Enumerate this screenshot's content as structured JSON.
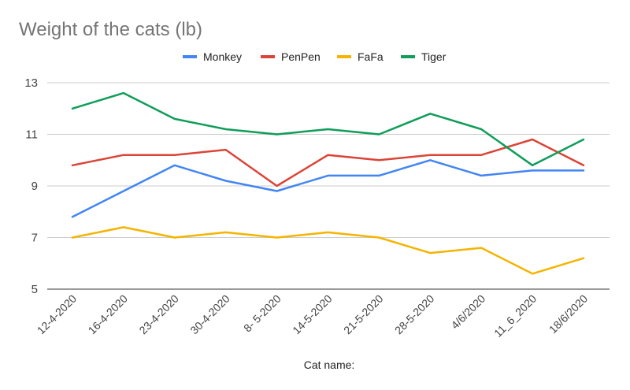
{
  "chart_data": {
    "type": "line",
    "title": "Weight of the cats (lb)",
    "xlabel": "Cat name:",
    "ylabel": "",
    "ylim": [
      5,
      13
    ],
    "yticks": [
      5,
      7,
      9,
      11,
      13
    ],
    "grid": true,
    "legend_position": "top",
    "categories": [
      "12-4-2020",
      "16-4-2020",
      "23-4-2020",
      "30-4-2020",
      "8- 5-2020",
      "14-5-2020",
      "21-5-2020",
      "28-5-2020",
      "4/6/2020",
      "11_6_2020",
      "18/6/2020"
    ],
    "series": [
      {
        "name": "Monkey",
        "color": "#4285F4",
        "values": [
          7.8,
          8.8,
          9.8,
          9.2,
          8.8,
          9.4,
          9.4,
          10.0,
          9.4,
          9.6,
          9.6
        ]
      },
      {
        "name": "PenPen",
        "color": "#DB4437",
        "values": [
          9.8,
          10.2,
          10.2,
          10.4,
          9.0,
          10.2,
          10.0,
          10.2,
          10.2,
          10.8,
          9.8
        ]
      },
      {
        "name": "FaFa",
        "color": "#F4B400",
        "values": [
          7.0,
          7.4,
          7.0,
          7.2,
          7.0,
          7.2,
          7.0,
          6.4,
          6.6,
          5.6,
          6.2
        ]
      },
      {
        "name": "Tiger",
        "color": "#0F9D58",
        "values": [
          12.0,
          12.6,
          11.6,
          11.2,
          11.0,
          11.2,
          11.0,
          11.8,
          11.2,
          9.8,
          10.8
        ]
      }
    ]
  }
}
